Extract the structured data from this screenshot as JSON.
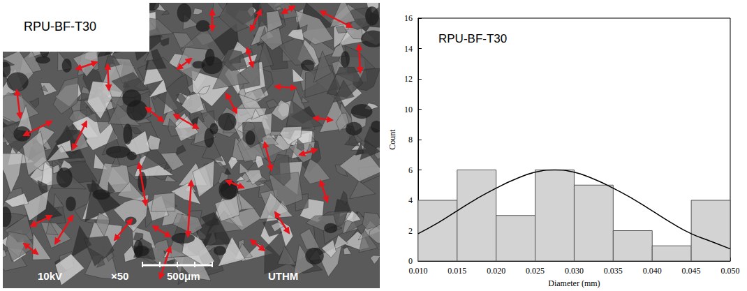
{
  "chart_data": {
    "type": "histogram",
    "title": "RPU-BF-T30",
    "x_label": "Diameter (mm)",
    "y_label": "Count",
    "bins": [
      0.01,
      0.015,
      0.02,
      0.025,
      0.03,
      0.035,
      0.04,
      0.045,
      0.05
    ],
    "counts": [
      4,
      6,
      3,
      6,
      5,
      2,
      1,
      4
    ],
    "color": "#d3d3d3",
    "xlim": [
      0.01,
      0.05
    ],
    "xticks": [
      {
        "value": 0.01,
        "label": "0.010"
      },
      {
        "value": 0.015,
        "label": "0.015"
      },
      {
        "value": 0.02,
        "label": "0.020"
      },
      {
        "value": 0.025,
        "label": "0.025"
      },
      {
        "value": 0.03,
        "label": "0.030"
      },
      {
        "value": 0.035,
        "label": "0.035"
      },
      {
        "value": 0.04,
        "label": "0.040"
      },
      {
        "value": 0.045,
        "label": "0.045"
      },
      {
        "value": 0.05,
        "label": "0.050"
      }
    ],
    "ylim": [
      0,
      16
    ],
    "yticks": [
      0,
      2,
      4,
      6,
      8,
      10,
      12,
      14,
      16
    ],
    "grid": false,
    "curve": {
      "type": "line",
      "color": "#000000",
      "x": [
        0.01,
        0.0125,
        0.015,
        0.0175,
        0.02,
        0.0225,
        0.025,
        0.0275,
        0.03,
        0.0325,
        0.035,
        0.0375,
        0.04,
        0.0425,
        0.045,
        0.0475,
        0.05
      ],
      "values": [
        1.8,
        2.5,
        3.3,
        4.1,
        4.8,
        5.4,
        5.85,
        6.0,
        5.85,
        5.4,
        4.8,
        4.1,
        3.3,
        2.5,
        1.8,
        1.3,
        0.8
      ]
    }
  },
  "image_panel": {
    "label": "RPU-BF-T30",
    "info": [
      "10kV",
      "×50",
      "500μm",
      "UTHM"
    ]
  }
}
